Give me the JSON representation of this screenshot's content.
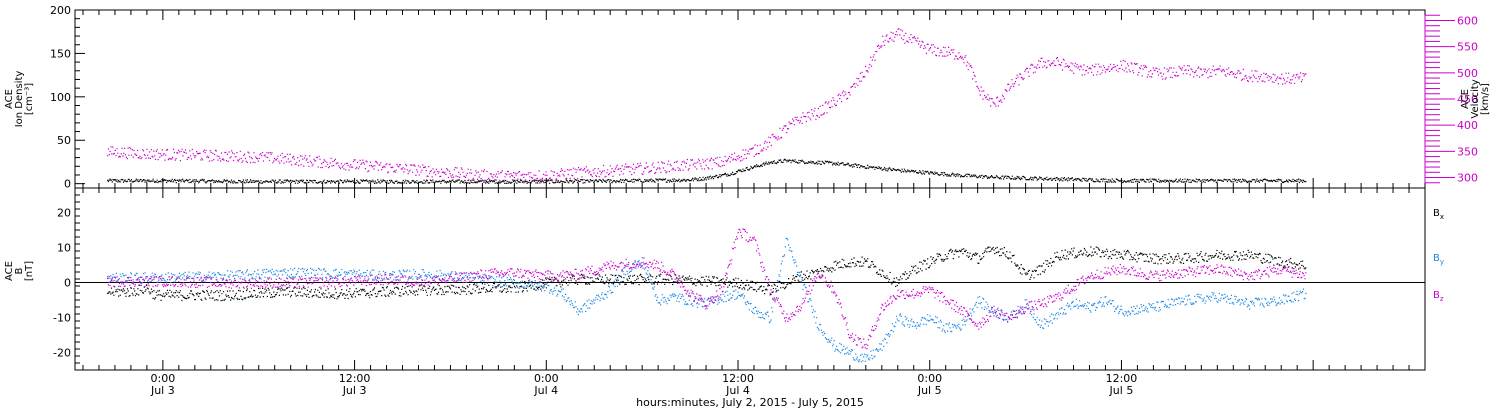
{
  "chart_data": [
    {
      "type": "scatter",
      "panel": "top",
      "ylabel_left": [
        "ACE",
        "Ion Density",
        "[cm⁻³]"
      ],
      "ylabel_right": [
        "ACE",
        "Velocity",
        "[km/s]"
      ],
      "ylim_left": [
        -5,
        200
      ],
      "yticks_left": [
        0,
        50,
        100,
        150,
        200
      ],
      "ylim_right": [
        280,
        620
      ],
      "yticks_right": [
        300,
        350,
        400,
        450,
        500,
        550,
        600
      ],
      "series": [
        {
          "color": "#000000",
          "axis": "left",
          "x": [
            -3.5,
            0,
            6,
            12,
            18,
            24,
            30,
            33,
            34,
            35.5,
            36,
            37,
            38,
            39,
            40,
            42,
            44,
            46,
            48,
            50,
            52,
            54,
            56,
            58,
            60,
            64,
            68,
            71.5
          ],
          "values": [
            4,
            4,
            3,
            3,
            3,
            3,
            4,
            5,
            7,
            12,
            15,
            20,
            25,
            27,
            26,
            24,
            20,
            16,
            13,
            10,
            8,
            7,
            6,
            5,
            4,
            4,
            4,
            4
          ]
        },
        {
          "color": "#cc00cc",
          "axis": "right",
          "x": [
            -3.5,
            0,
            3,
            6,
            9,
            12,
            15,
            18,
            20,
            21,
            24,
            27,
            30,
            33,
            35,
            36,
            37,
            38,
            39,
            40,
            41,
            42,
            43,
            44,
            45,
            46,
            47,
            48,
            49,
            50,
            50.5,
            51,
            52,
            52.5,
            53,
            54,
            55,
            56,
            57,
            58,
            59,
            60,
            61,
            62,
            63,
            64,
            65,
            66,
            67,
            68,
            69,
            70,
            71,
            71.5
          ],
          "values": [
            350,
            345,
            343,
            340,
            333,
            325,
            318,
            310,
            305,
            304,
            305,
            312,
            318,
            325,
            330,
            342,
            352,
            370,
            395,
            415,
            425,
            445,
            465,
            505,
            560,
            575,
            560,
            545,
            540,
            535,
            510,
            470,
            440,
            455,
            475,
            500,
            520,
            520,
            510,
            505,
            510,
            515,
            508,
            500,
            500,
            505,
            500,
            505,
            500,
            495,
            495,
            490,
            490,
            490
          ]
        }
      ]
    },
    {
      "type": "scatter",
      "panel": "bottom",
      "ylabel_left": [
        "ACE",
        "B",
        "[nT]"
      ],
      "ylim": [
        -25,
        27
      ],
      "yticks": [
        -20,
        -10,
        0,
        10,
        20
      ],
      "legend": [
        "B",
        "B",
        "B"
      ],
      "legend_subscripts": [
        "x",
        "y",
        "z"
      ],
      "series": [
        {
          "color": "#000000",
          "subscript": "x",
          "x": [
            -3.5,
            -2,
            -1,
            -0.5,
            0,
            2,
            4,
            6,
            8,
            10,
            12,
            14,
            16,
            18,
            20,
            22,
            24,
            26,
            28,
            30,
            32,
            34,
            36,
            37,
            38,
            39,
            40,
            41,
            42,
            43,
            44,
            45,
            46,
            47,
            48,
            49,
            50,
            51,
            52,
            53,
            54,
            55,
            56,
            58,
            60,
            62,
            64,
            66,
            68,
            70,
            71.5
          ],
          "values": [
            -2.5,
            -2.5,
            -1.5,
            -3.5,
            -3.5,
            -3.5,
            -3.5,
            -3,
            -2.5,
            -3,
            -3,
            -2.5,
            -2,
            -2,
            -1.5,
            -1.5,
            0,
            1,
            1,
            1,
            1,
            0.5,
            0,
            -1,
            -2,
            0,
            2,
            3,
            5,
            6,
            6,
            3,
            0,
            4,
            6,
            8,
            9,
            7,
            10,
            8,
            2,
            4,
            8,
            9,
            8,
            7,
            7,
            8,
            8,
            6,
            5
          ]
        },
        {
          "color": "#1e88e5",
          "subscript": "y",
          "x": [
            -3.5,
            0,
            4,
            8,
            12,
            14,
            16,
            18,
            20,
            22,
            24,
            25,
            26,
            27,
            28,
            29,
            30,
            31,
            32,
            33,
            34,
            35,
            36,
            37,
            38,
            39,
            40,
            41,
            42,
            43,
            44,
            45,
            46,
            47,
            48,
            49,
            50,
            51,
            52,
            53,
            54,
            55,
            56,
            57,
            58,
            59,
            60,
            62,
            64,
            66,
            68,
            70,
            71.5
          ],
          "values": [
            1.5,
            1.5,
            2,
            3,
            2.5,
            2,
            2.5,
            2,
            1,
            0,
            -1,
            -3,
            -8,
            -5,
            -2,
            4,
            6,
            -5,
            -4,
            -5,
            -6,
            -4,
            -3,
            -8,
            -10,
            12,
            0,
            -12,
            -18,
            -20,
            -22,
            -18,
            -10,
            -12,
            -10,
            -13,
            -12,
            -5,
            -8,
            -10,
            -6,
            -12,
            -9,
            -6,
            -7,
            -5,
            -8,
            -7,
            -5,
            -4,
            -6,
            -5,
            -3
          ]
        },
        {
          "color": "#cc00cc",
          "subscript": "z",
          "x": [
            -3.5,
            0,
            4,
            8,
            12,
            14,
            16,
            18,
            20,
            22,
            24,
            26,
            28,
            30,
            31,
            32,
            33,
            34,
            35,
            36,
            37,
            38,
            39,
            40,
            41,
            42,
            43,
            44,
            45,
            46,
            47,
            48,
            49,
            50,
            51,
            52,
            53,
            54,
            55,
            56,
            58,
            60,
            62,
            64,
            66,
            68,
            70,
            71.5
          ],
          "values": [
            0.5,
            0.5,
            0,
            0,
            0.5,
            1,
            0.5,
            1,
            2.5,
            3,
            2,
            2.5,
            5,
            6,
            5,
            2,
            -3,
            -6,
            -2,
            15,
            12,
            -2,
            -10,
            -6,
            3,
            -2,
            -15,
            -18,
            -7,
            -3,
            -3,
            -2,
            -5,
            -8,
            -12,
            -8,
            -10,
            -7,
            -6,
            -4,
            2,
            4,
            2,
            3,
            4,
            2,
            4,
            2
          ]
        }
      ]
    }
  ],
  "xaxis": {
    "xlim": [
      -5.5,
      79
    ],
    "major_ticks": [
      0,
      12,
      24,
      36,
      48,
      60,
      72
    ],
    "tick_labels_top": [
      "0:00",
      "12:00",
      "0:00",
      "12:00",
      "0:00",
      "12:00"
    ],
    "tick_labels_bottom": [
      "Jul 3",
      "Jul 3",
      "Jul 4",
      "Jul 4",
      "Jul 5",
      "Jul 5"
    ],
    "label_ticks": [
      0,
      12,
      24,
      36,
      48,
      60
    ]
  },
  "footer": "hours:minutes, July  2, 2015 - July  5, 2015",
  "colors": {
    "density": "#000000",
    "velocity": "#cc00cc",
    "bx": "#000000",
    "by": "#1e88e5",
    "bz": "#cc00cc"
  }
}
